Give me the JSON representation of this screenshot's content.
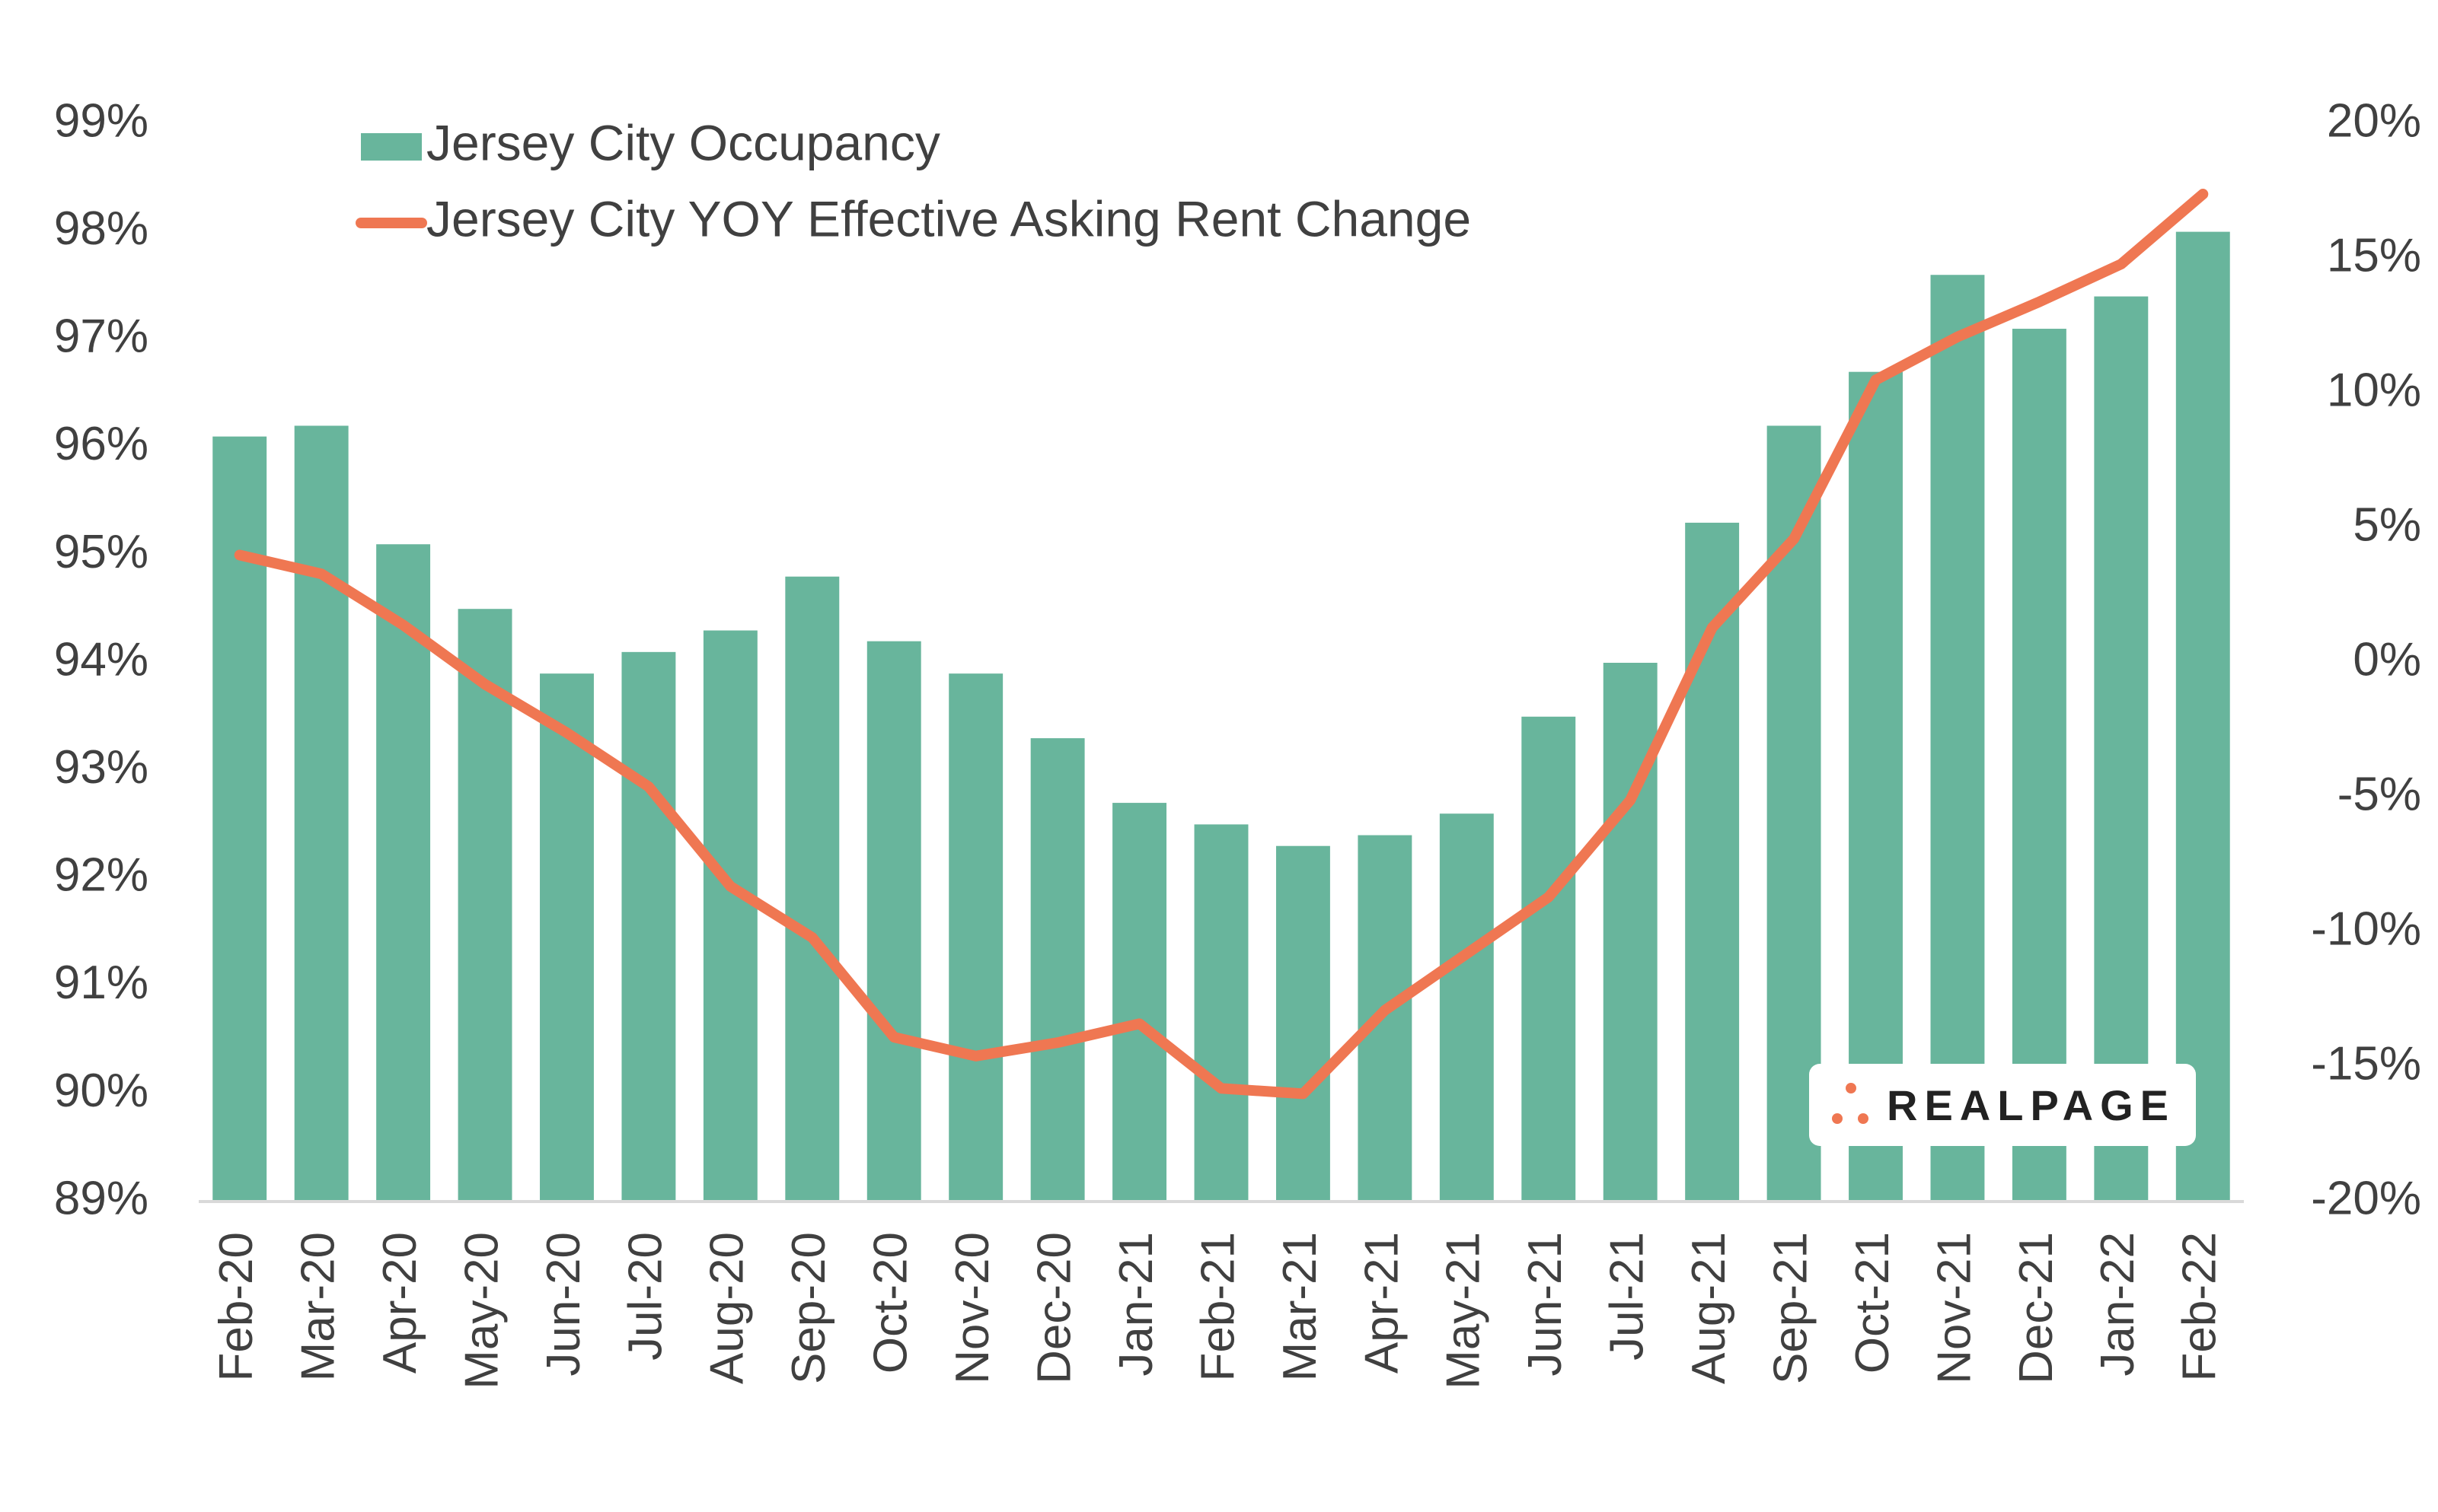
{
  "chart_data": {
    "type": "bar_line",
    "categories": [
      "Feb-20",
      "Mar-20",
      "Apr-20",
      "May-20",
      "Jun-20",
      "Jul-20",
      "Aug-20",
      "Sep-20",
      "Oct-20",
      "Nov-20",
      "Dec-20",
      "Jan-21",
      "Feb-21",
      "Mar-21",
      "Apr-21",
      "May-21",
      "Jun-21",
      "Jul-21",
      "Aug-21",
      "Sep-21",
      "Oct-21",
      "Nov-21",
      "Dec-21",
      "Jan-22",
      "Feb-22"
    ],
    "series": [
      {
        "name": "Jersey City Occupancy",
        "type": "bar",
        "color": "#68b59c",
        "values": [
          96.1,
          96.2,
          95.1,
          94.5,
          93.9,
          94.1,
          94.3,
          94.8,
          94.2,
          93.9,
          93.3,
          92.7,
          92.5,
          92.3,
          92.4,
          92.6,
          93.5,
          94.0,
          95.3,
          96.2,
          96.7,
          97.6,
          97.1,
          97.4,
          98.0
        ]
      },
      {
        "name": "Jersey City YOY Effective Asking Rent Change",
        "type": "line",
        "axis": "y2",
        "color": "#ef7752",
        "values": [
          4.0,
          3.3,
          1.4,
          -0.8,
          -2.6,
          -4.6,
          -8.3,
          -10.2,
          -13.9,
          -14.6,
          -14.1,
          -13.4,
          -15.8,
          -16.0,
          -12.9,
          -10.8,
          -8.7,
          -5.1,
          1.3,
          4.6,
          10.5,
          12.1,
          13.4,
          14.8,
          17.4
        ]
      }
    ],
    "ylim": [
      89,
      99
    ],
    "yticks": [
      {
        "value": 89,
        "label": "89%"
      },
      {
        "value": 90,
        "label": "90%"
      },
      {
        "value": 91,
        "label": "91%"
      },
      {
        "value": 92,
        "label": "92%"
      },
      {
        "value": 93,
        "label": "93%"
      },
      {
        "value": 94,
        "label": "94%"
      },
      {
        "value": 95,
        "label": "95%"
      },
      {
        "value": 96,
        "label": "96%"
      },
      {
        "value": 97,
        "label": "97%"
      },
      {
        "value": 98,
        "label": "98%"
      },
      {
        "value": 99,
        "label": "99%"
      }
    ],
    "y2lim": [
      -20,
      20
    ],
    "y2ticks": [
      {
        "value": -20,
        "label": "-20%"
      },
      {
        "value": -15,
        "label": "-15%"
      },
      {
        "value": -10,
        "label": "-10%"
      },
      {
        "value": -5,
        "label": "-5%"
      },
      {
        "value": 0,
        "label": "0%"
      },
      {
        "value": 5,
        "label": "5%"
      },
      {
        "value": 10,
        "label": "10%"
      },
      {
        "value": 15,
        "label": "15%"
      },
      {
        "value": 20,
        "label": "20%"
      }
    ],
    "grid": false,
    "logo": "REALPAGE"
  }
}
